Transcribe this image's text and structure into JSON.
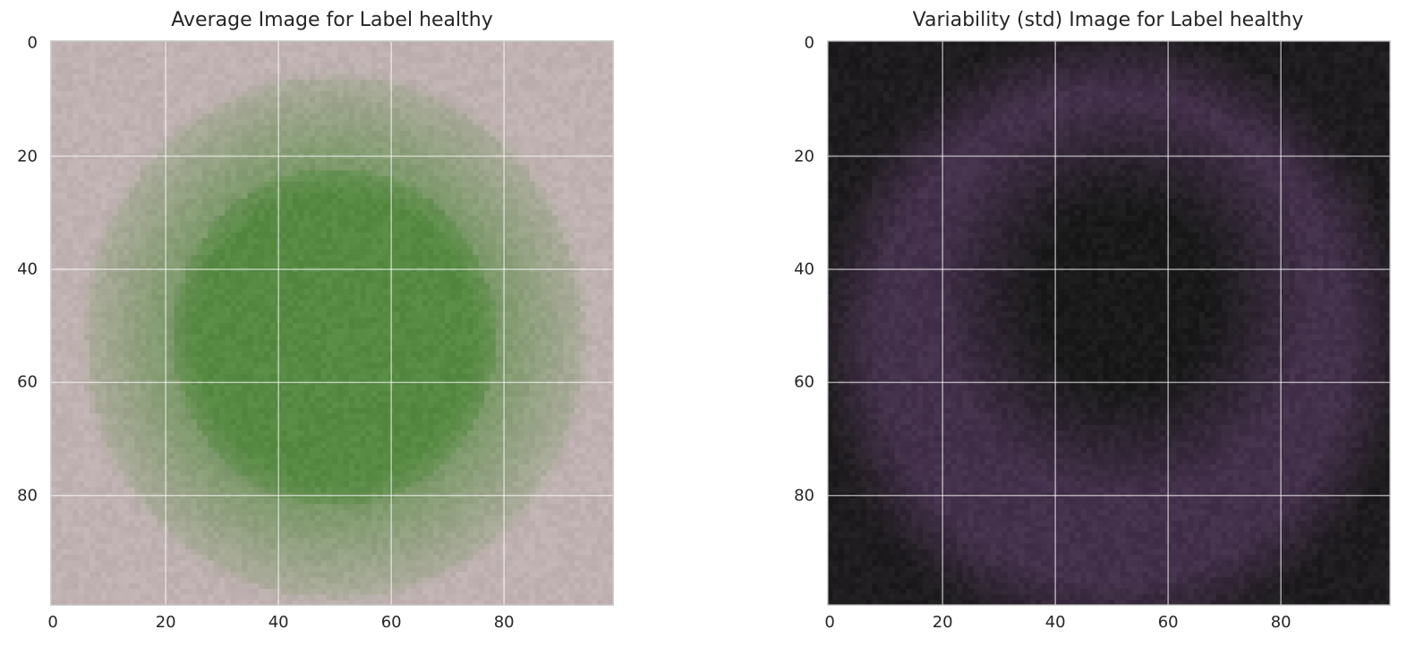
{
  "chart_data": [
    {
      "type": "heatmap",
      "title": "Average Image for Label healthy",
      "image_size": [
        100,
        100
      ],
      "xlim": [
        -0.5,
        99.5
      ],
      "ylim": [
        99.5,
        -0.5
      ],
      "xticks": [
        0,
        20,
        40,
        60,
        80
      ],
      "yticks": [
        0,
        20,
        40,
        60,
        80
      ],
      "xtick_labels": [
        "0",
        "20",
        "40",
        "60",
        "80"
      ],
      "ytick_labels": [
        "0",
        "20",
        "40",
        "60",
        "80"
      ],
      "grid": true,
      "background_color": "#bcadad",
      "center_color": "#5a8a44",
      "description_colors": {
        "edge": "#c0b2b2",
        "ring": "#9aa588",
        "center": "#568a42"
      }
    },
    {
      "type": "heatmap",
      "title": "Variability (std) Image for Label healthy",
      "image_size": [
        100,
        100
      ],
      "xlim": [
        -0.5,
        99.5
      ],
      "ylim": [
        99.5,
        -0.5
      ],
      "xticks": [
        0,
        20,
        40,
        60,
        80
      ],
      "yticks": [
        0,
        20,
        40,
        60,
        80
      ],
      "xtick_labels": [
        "0",
        "20",
        "40",
        "60",
        "80"
      ],
      "ytick_labels": [
        "0",
        "20",
        "40",
        "60",
        "80"
      ],
      "grid": true,
      "background_color": "#1c1a1c",
      "ring_color": "#3f2e45",
      "description_colors": {
        "edge": "#1e1c1e",
        "ring": "#43304a",
        "center": "#1a1a1a"
      }
    }
  ]
}
